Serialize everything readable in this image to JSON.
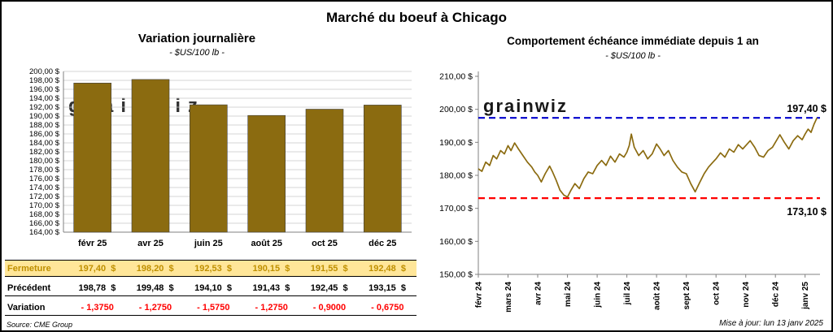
{
  "title": "Marché du boeuf à Chicago",
  "source": "Source: CME Group",
  "updated": "Mise à jour: lun 13 janv 2025",
  "watermark": "grainwiz",
  "colors": {
    "gold": "#8B6B10",
    "grid": "#C9C9C9",
    "axis": "#808080",
    "high_line": "#0000CD",
    "low_line": "#FF0000",
    "fermeture_bg": "#FFE699",
    "fermeture_text": "#BF9000",
    "variation_text": "#FF0000",
    "watermark_color": "#C3C3C3"
  },
  "chart_data": [
    {
      "type": "bar",
      "title": "Variation  journalière",
      "subtitle": "- $US/100 lb -",
      "categories": [
        "févr 25",
        "avr 25",
        "juin 25",
        "août 25",
        "oct 25",
        "déc 25"
      ],
      "values": [
        197.4,
        198.2,
        192.53,
        190.15,
        191.55,
        192.48
      ],
      "ylabel": "$US/100 lb",
      "ylim": [
        164,
        200
      ],
      "ytick_step": 2,
      "grid": true,
      "legend": "none"
    },
    {
      "type": "line",
      "title": "Comportement  échéance  immédiate  depuis  1 an",
      "subtitle": "- $US/100 lb -",
      "x_labels": [
        "févr 24",
        "mars 24",
        "avr 24",
        "mai 24",
        "juin 24",
        "juil 24",
        "août 24",
        "sept 24",
        "oct 24",
        "nov 24",
        "déc 24",
        "janv 25"
      ],
      "ylabel": "$US/100 lb",
      "ylim": [
        150,
        210
      ],
      "ytick_step": 10,
      "grid": false,
      "legend": "none",
      "ref_lines": [
        {
          "name": "high-line",
          "value": 197.4,
          "label": "197,40 $",
          "color": "#0000CD",
          "label_pos": "above"
        },
        {
          "name": "low-line",
          "value": 173.1,
          "label": "173,10 $",
          "color": "#FF0000",
          "label_pos": "below"
        }
      ],
      "series": [
        {
          "name": "échéance immédiate",
          "x": [
            0,
            0.12,
            0.25,
            0.38,
            0.5,
            0.62,
            0.75,
            0.88,
            1.0,
            1.1,
            1.22,
            1.35,
            1.5,
            1.65,
            1.8,
            1.9,
            2.0,
            2.12,
            2.25,
            2.4,
            2.5,
            2.62,
            2.75,
            2.88,
            3.0,
            3.12,
            3.25,
            3.4,
            3.55,
            3.7,
            3.85,
            4.0,
            4.15,
            4.3,
            4.45,
            4.6,
            4.75,
            4.9,
            5.0,
            5.08,
            5.15,
            5.25,
            5.4,
            5.55,
            5.7,
            5.85,
            6.0,
            6.12,
            6.25,
            6.4,
            6.55,
            6.7,
            6.85,
            7.0,
            7.15,
            7.3,
            7.45,
            7.6,
            7.75,
            7.9,
            8.0,
            8.15,
            8.3,
            8.45,
            8.6,
            8.75,
            8.9,
            9.0,
            9.15,
            9.3,
            9.45,
            9.6,
            9.75,
            9.9,
            10.0,
            10.15,
            10.3,
            10.45,
            10.6,
            10.75,
            10.9,
            11.0,
            11.1,
            11.2,
            11.3,
            11.4
          ],
          "y": [
            182,
            181.2,
            184,
            183,
            186,
            185,
            187.5,
            186.5,
            189,
            187.5,
            189.8,
            188,
            186,
            184,
            182.5,
            181,
            180,
            178,
            180.5,
            182.8,
            181,
            178.5,
            175.5,
            174,
            173.4,
            175.5,
            177.5,
            176,
            179,
            181,
            180.5,
            183,
            184.5,
            183,
            185.8,
            184,
            186.5,
            185.5,
            187,
            189,
            192.5,
            188.5,
            186,
            187.5,
            185,
            186.5,
            189.5,
            188,
            186,
            187.5,
            184.5,
            182.5,
            181,
            180.5,
            177.5,
            175,
            177.8,
            180.5,
            182.5,
            184,
            185,
            186.8,
            185.5,
            188,
            187,
            189.3,
            188,
            189,
            190.5,
            188.5,
            186,
            185.5,
            187.5,
            188.5,
            190,
            192.3,
            190,
            188,
            190.5,
            192,
            190.8,
            192.5,
            194,
            193,
            195.5,
            197.4
          ]
        }
      ]
    }
  ],
  "table": {
    "rows": [
      {
        "label": "Fermeture",
        "style": "fermeture",
        "values": [
          "197,40  $",
          "198,20  $",
          "192,53  $",
          "190,15  $",
          "191,55  $",
          "192,48  $"
        ]
      },
      {
        "label": "Précédent",
        "style": "precedent",
        "values": [
          "198,78  $",
          "199,48  $",
          "194,10  $",
          "191,43  $",
          "192,45  $",
          "193,15  $"
        ]
      },
      {
        "label": "Variation",
        "style": "variation",
        "values": [
          "- 1,3750",
          "- 1,2750",
          "- 1,5750",
          "- 1,2750",
          "- 0,9000",
          "- 0,6750"
        ]
      }
    ]
  }
}
